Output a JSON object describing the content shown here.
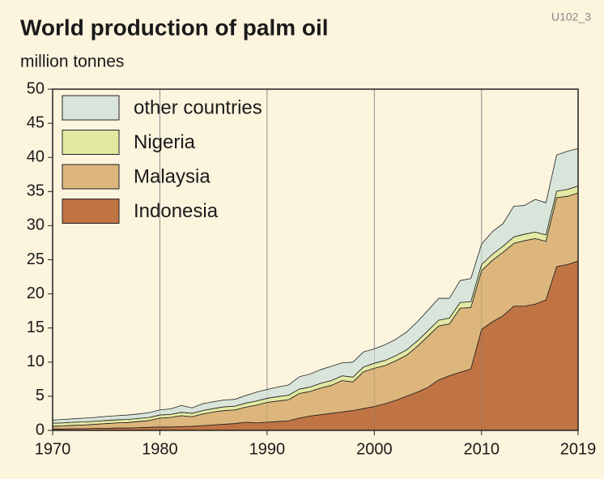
{
  "chart_data": {
    "type": "stacked-area",
    "title": "World production of palm oil",
    "subtitle": "million tonnes",
    "code": "U102_3",
    "x": [
      1970,
      1971,
      1972,
      1973,
      1974,
      1975,
      1976,
      1977,
      1978,
      1979,
      1980,
      1981,
      1982,
      1983,
      1984,
      1985,
      1986,
      1987,
      1988,
      1989,
      1990,
      1991,
      1992,
      1993,
      1994,
      1995,
      1996,
      1997,
      1998,
      1999,
      2000,
      2001,
      2002,
      2003,
      2004,
      2005,
      2006,
      2007,
      2008,
      2009,
      2010,
      2011,
      2012,
      2013,
      2014,
      2015,
      2016,
      2017,
      2018,
      2019
    ],
    "series": [
      {
        "name": "Indonesia",
        "color": "#c07444",
        "values": [
          0.2,
          0.2,
          0.25,
          0.25,
          0.3,
          0.3,
          0.35,
          0.35,
          0.4,
          0.45,
          0.5,
          0.5,
          0.55,
          0.6,
          0.7,
          0.8,
          0.9,
          1.0,
          1.2,
          1.1,
          1.2,
          1.3,
          1.4,
          1.8,
          2.1,
          2.3,
          2.5,
          2.7,
          2.9,
          3.2,
          3.5,
          3.9,
          4.4,
          5.0,
          5.6,
          6.3,
          7.4,
          8.0,
          8.5,
          9.0,
          14.8,
          15.9,
          16.8,
          18.2,
          18.2,
          18.5,
          19.1,
          24.0,
          24.3,
          24.8
        ]
      },
      {
        "name": "Malaysia",
        "color": "#dcb67c",
        "values": [
          0.4,
          0.45,
          0.5,
          0.55,
          0.6,
          0.7,
          0.75,
          0.8,
          0.9,
          1.0,
          1.3,
          1.4,
          1.6,
          1.4,
          1.7,
          1.9,
          2.0,
          2.0,
          2.2,
          2.6,
          2.9,
          3.0,
          3.1,
          3.6,
          3.6,
          3.9,
          4.1,
          4.6,
          4.2,
          5.4,
          5.6,
          5.6,
          5.8,
          6.0,
          6.7,
          7.5,
          7.9,
          7.6,
          9.4,
          9.0,
          8.6,
          9.0,
          9.3,
          9.2,
          9.6,
          9.6,
          8.6,
          10.1,
          10.0,
          10.0
        ]
      },
      {
        "name": "Nigeria",
        "color": "#e3e9a3",
        "values": [
          0.45,
          0.45,
          0.45,
          0.45,
          0.45,
          0.45,
          0.45,
          0.45,
          0.45,
          0.45,
          0.45,
          0.45,
          0.5,
          0.5,
          0.5,
          0.5,
          0.55,
          0.55,
          0.6,
          0.6,
          0.6,
          0.65,
          0.65,
          0.65,
          0.65,
          0.7,
          0.7,
          0.7,
          0.7,
          0.7,
          0.75,
          0.75,
          0.75,
          0.8,
          0.8,
          0.8,
          0.85,
          0.85,
          0.85,
          0.85,
          0.9,
          0.9,
          0.9,
          0.95,
          0.95,
          0.95,
          0.95,
          0.95,
          1.0,
          1.0
        ]
      },
      {
        "name": "other countries",
        "color": "#d9e5da",
        "values": [
          0.45,
          0.5,
          0.5,
          0.55,
          0.55,
          0.6,
          0.6,
          0.65,
          0.65,
          0.7,
          0.75,
          0.8,
          1.0,
          0.8,
          1.0,
          1.0,
          1.0,
          1.0,
          1.1,
          1.3,
          1.3,
          1.4,
          1.5,
          1.8,
          1.9,
          2.0,
          2.1,
          1.9,
          2.2,
          2.2,
          2.1,
          2.3,
          2.4,
          2.6,
          2.8,
          3.0,
          3.2,
          2.9,
          3.2,
          3.4,
          3.0,
          3.3,
          3.3,
          4.5,
          4.2,
          4.8,
          4.7,
          5.3,
          5.6,
          5.5
        ]
      }
    ],
    "xlim": [
      1970,
      2019
    ],
    "xticks": [
      1970,
      1980,
      1990,
      2000,
      2010,
      2019
    ],
    "ylim": [
      0,
      50
    ],
    "yticks": [
      0,
      5,
      10,
      15,
      20,
      25,
      30,
      35,
      40,
      45,
      50
    ],
    "grid": "x",
    "legend": "top-left"
  }
}
